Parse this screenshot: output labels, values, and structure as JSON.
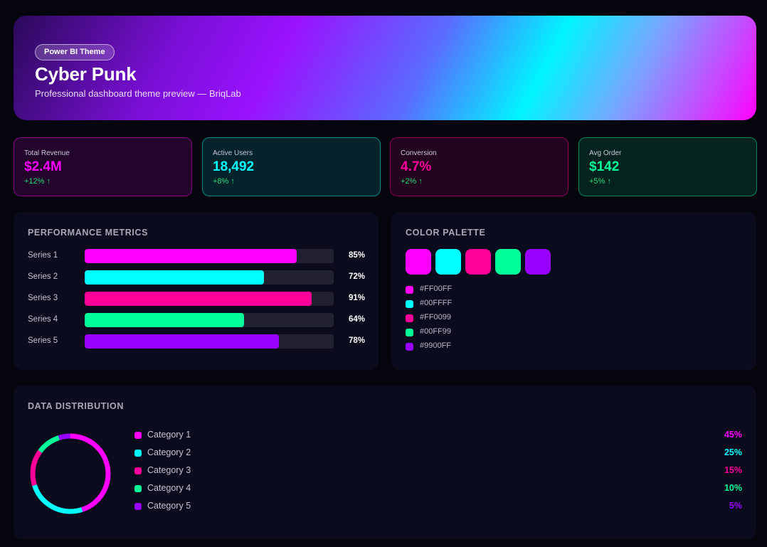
{
  "hero": {
    "badge": "Power BI Theme",
    "title": "Cyber Punk",
    "subtitle": "Professional dashboard theme preview — BriqLab"
  },
  "kpis": [
    {
      "label": "Total Revenue",
      "value": "$2.4M",
      "delta": "+12% ↑",
      "color": "#FF00FF"
    },
    {
      "label": "Active Users",
      "value": "18,492",
      "delta": "+8% ↑",
      "color": "#00FFFF"
    },
    {
      "label": "Conversion",
      "value": "4.7%",
      "delta": "+2% ↑",
      "color": "#FF0099"
    },
    {
      "label": "Avg Order",
      "value": "$142",
      "delta": "+5% ↑",
      "color": "#00FF99"
    }
  ],
  "performance": {
    "title": "PERFORMANCE METRICS",
    "rows": [
      {
        "label": "Series 1",
        "value": 85,
        "pct": "85%",
        "color": "#FF00FF"
      },
      {
        "label": "Series 2",
        "value": 72,
        "pct": "72%",
        "color": "#00FFFF"
      },
      {
        "label": "Series 3",
        "value": 91,
        "pct": "91%",
        "color": "#FF0099"
      },
      {
        "label": "Series 4",
        "value": 64,
        "pct": "64%",
        "color": "#00FF99"
      },
      {
        "label": "Series 5",
        "value": 78,
        "pct": "78%",
        "color": "#9900FF"
      }
    ]
  },
  "palette": {
    "title": "COLOR PALETTE",
    "colors": [
      "#FF00FF",
      "#00FFFF",
      "#FF0099",
      "#00FF99",
      "#9900FF"
    ]
  },
  "distribution": {
    "title": "DATA DISTRIBUTION",
    "categories": [
      {
        "label": "Category 1",
        "value": 45,
        "pct": "45%",
        "color": "#FF00FF"
      },
      {
        "label": "Category 2",
        "value": 25,
        "pct": "25%",
        "color": "#00FFFF"
      },
      {
        "label": "Category 3",
        "value": 15,
        "pct": "15%",
        "color": "#FF0099"
      },
      {
        "label": "Category 4",
        "value": 10,
        "pct": "10%",
        "color": "#00FF99"
      },
      {
        "label": "Category 5",
        "value": 5,
        "pct": "5%",
        "color": "#9900FF"
      }
    ]
  }
}
